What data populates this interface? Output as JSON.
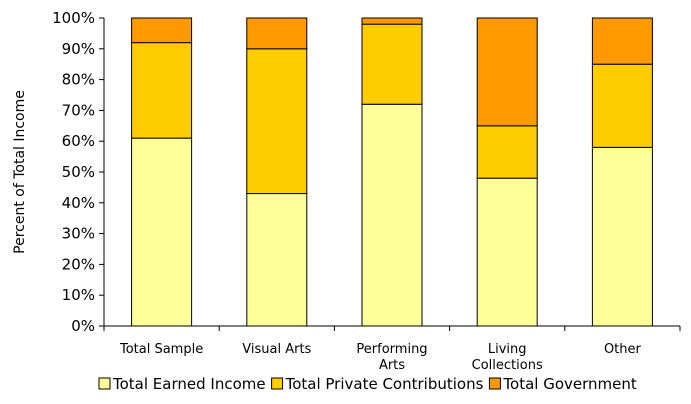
{
  "chart_data": {
    "type": "bar",
    "stacked": true,
    "percent_stacked": true,
    "categories": [
      "Total Sample",
      "Visual Arts",
      "Performing Arts",
      "Living Collections",
      "Other"
    ],
    "category_lines": [
      [
        "Total Sample"
      ],
      [
        "Visual Arts"
      ],
      [
        "Performing",
        "Arts"
      ],
      [
        "Living",
        "Collections"
      ],
      [
        "Other"
      ]
    ],
    "series": [
      {
        "name": "Total Earned Income",
        "color": "#FFFF99",
        "values": [
          61,
          43,
          72,
          48,
          58
        ]
      },
      {
        "name": "Total Private Contributions",
        "color": "#FFCC00",
        "values": [
          31,
          47,
          26,
          17,
          27
        ]
      },
      {
        "name": "Total Government",
        "color": "#FF9900",
        "values": [
          8,
          10,
          2,
          35,
          15
        ]
      }
    ],
    "ylabel": "Percent of Total Income",
    "xlabel": "",
    "ylim": [
      0,
      100
    ],
    "yticks": [
      "0%",
      "10%",
      "20%",
      "30%",
      "40%",
      "50%",
      "60%",
      "70%",
      "80%",
      "90%",
      "100%"
    ],
    "grid": false,
    "legend_position": "bottom"
  }
}
